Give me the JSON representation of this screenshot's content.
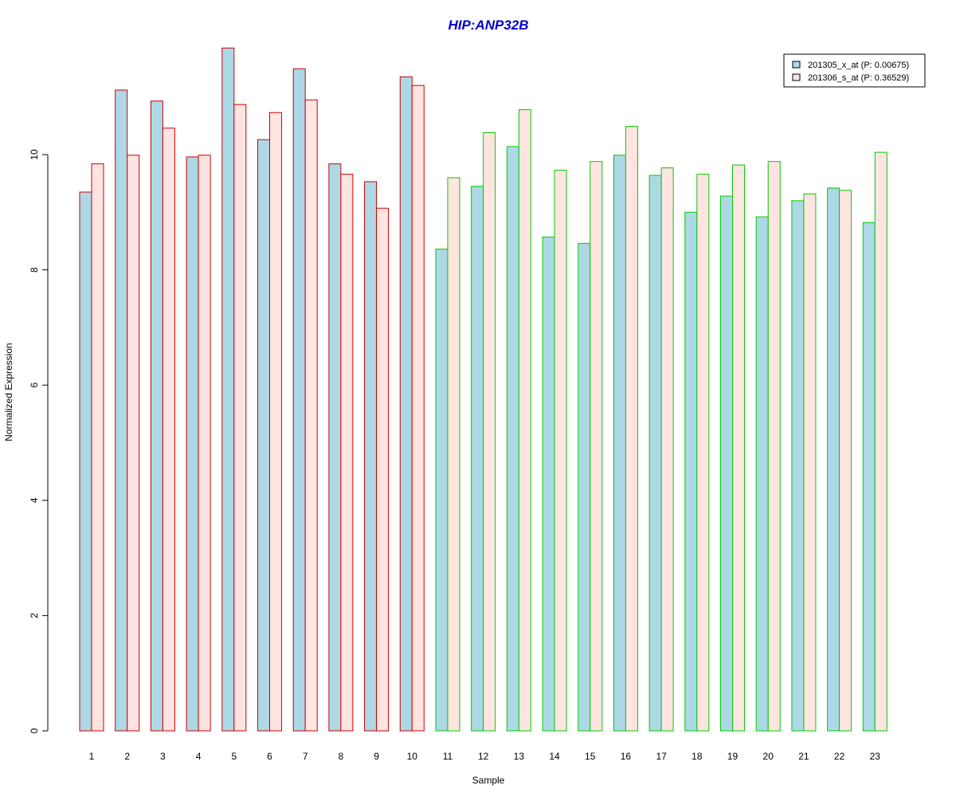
{
  "chart_data": {
    "type": "bar",
    "title": "HIP:ANP32B",
    "xlabel": "Sample",
    "ylabel": "Normalized Expression",
    "ylim": [
      0,
      12
    ],
    "y_ticks": [
      0,
      2,
      4,
      6,
      8,
      10
    ],
    "grid": false,
    "legend_position": "top-right",
    "title_color": "#0000cc",
    "categories": [
      "1",
      "2",
      "3",
      "4",
      "5",
      "6",
      "7",
      "8",
      "9",
      "10",
      "11",
      "12",
      "13",
      "14",
      "15",
      "16",
      "17",
      "18",
      "19",
      "20",
      "21",
      "22",
      "23"
    ],
    "group_border_colors": {
      "group_1": "#cc0000",
      "group_2": "#00cc00"
    },
    "category_groups": [
      "group_1",
      "group_1",
      "group_1",
      "group_1",
      "group_1",
      "group_1",
      "group_1",
      "group_1",
      "group_1",
      "group_1",
      "group_2",
      "group_2",
      "group_2",
      "group_2",
      "group_2",
      "group_2",
      "group_2",
      "group_2",
      "group_2",
      "group_2",
      "group_2",
      "group_2",
      "group_2"
    ],
    "series": [
      {
        "name": "201305_x_at (P: 0.00675)",
        "fill": "#add8e6",
        "values": [
          9.35,
          11.12,
          10.93,
          9.96,
          11.85,
          10.26,
          11.49,
          9.84,
          9.53,
          11.35,
          8.36,
          9.45,
          10.14,
          8.57,
          8.46,
          9.99,
          9.64,
          9.0,
          9.28,
          8.92,
          9.2,
          9.42,
          8.82
        ]
      },
      {
        "name": "201306_s_at (P: 0.36529)",
        "fill": "#ffe4e1",
        "values": [
          9.84,
          9.99,
          10.46,
          9.99,
          10.87,
          10.73,
          10.95,
          9.66,
          9.07,
          11.2,
          9.6,
          10.38,
          10.78,
          9.73,
          9.88,
          10.49,
          9.77,
          9.66,
          9.82,
          9.88,
          9.32,
          9.38,
          10.04
        ]
      }
    ]
  }
}
